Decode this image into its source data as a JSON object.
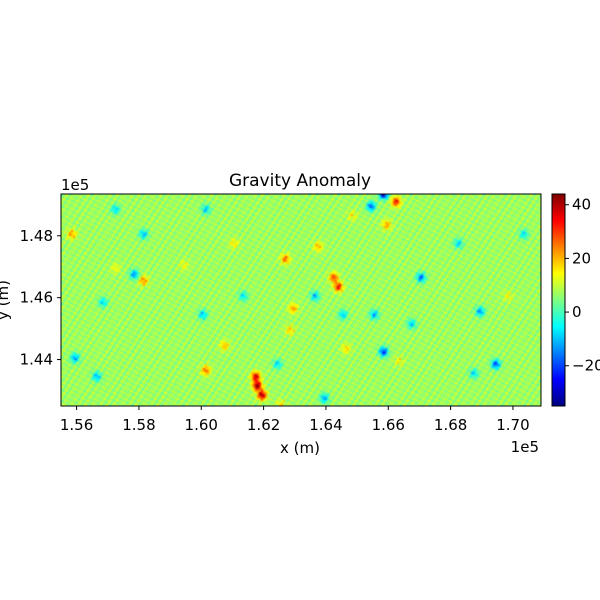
{
  "chart_data": {
    "type": "heatmap",
    "title": "Gravity Anomaly",
    "xlabel": "x (m)",
    "ylabel": "y (m)",
    "x_offset_label": "1e5",
    "y_offset_label": "1e5",
    "xlim": [
      1.555,
      1.709
    ],
    "ylim": [
      1.425,
      1.4935
    ],
    "x_ticks": [
      {
        "value": 1.56,
        "label": "1.56"
      },
      {
        "value": 1.58,
        "label": "1.58"
      },
      {
        "value": 1.6,
        "label": "1.60"
      },
      {
        "value": 1.62,
        "label": "1.62"
      },
      {
        "value": 1.64,
        "label": "1.64"
      },
      {
        "value": 1.66,
        "label": "1.66"
      },
      {
        "value": 1.68,
        "label": "1.68"
      },
      {
        "value": 1.7,
        "label": "1.70"
      }
    ],
    "y_ticks": [
      {
        "value": 1.44,
        "label": "1.44"
      },
      {
        "value": 1.46,
        "label": "1.46"
      },
      {
        "value": 1.48,
        "label": "1.48"
      }
    ],
    "colormap": "jet",
    "clim": [
      -35,
      44
    ],
    "colorbar_ticks": [
      {
        "value": -20,
        "label": "−20"
      },
      {
        "value": 0,
        "label": "0"
      },
      {
        "value": 20,
        "label": "20"
      },
      {
        "value": 40,
        "label": "40"
      }
    ],
    "field_baseline": 7,
    "anomalies": [
      {
        "x": 1.618,
        "y": 1.4315,
        "value": 44
      },
      {
        "x": 1.6195,
        "y": 1.4285,
        "value": 42
      },
      {
        "x": 1.6175,
        "y": 1.4345,
        "value": 38
      },
      {
        "x": 1.644,
        "y": 1.4635,
        "value": 34
      },
      {
        "x": 1.6425,
        "y": 1.4665,
        "value": 30
      },
      {
        "x": 1.6625,
        "y": 1.491,
        "value": 34
      },
      {
        "x": 1.627,
        "y": 1.4725,
        "value": 26
      },
      {
        "x": 1.6295,
        "y": 1.4565,
        "value": 22
      },
      {
        "x": 1.6285,
        "y": 1.4495,
        "value": 18
      },
      {
        "x": 1.6015,
        "y": 1.4365,
        "value": 26
      },
      {
        "x": 1.5815,
        "y": 1.4655,
        "value": 24
      },
      {
        "x": 1.6375,
        "y": 1.4765,
        "value": 20
      },
      {
        "x": 1.6595,
        "y": 1.4835,
        "value": 22
      },
      {
        "x": 1.5585,
        "y": 1.4805,
        "value": 22
      },
      {
        "x": 1.6075,
        "y": 1.4445,
        "value": 20
      },
      {
        "x": 1.6465,
        "y": 1.4435,
        "value": 17
      },
      {
        "x": 1.6105,
        "y": 1.4775,
        "value": 16
      },
      {
        "x": 1.6485,
        "y": 1.4865,
        "value": 15
      },
      {
        "x": 1.6635,
        "y": 1.4395,
        "value": 14
      },
      {
        "x": 1.5945,
        "y": 1.4705,
        "value": 14
      },
      {
        "x": 1.5725,
        "y": 1.4695,
        "value": 14
      },
      {
        "x": 1.6985,
        "y": 1.4605,
        "value": 14
      },
      {
        "x": 1.6255,
        "y": 1.4255,
        "value": 16
      },
      {
        "x": 1.6585,
        "y": 1.4935,
        "value": -33
      },
      {
        "x": 1.6545,
        "y": 1.4895,
        "value": -18
      },
      {
        "x": 1.6585,
        "y": 1.4425,
        "value": -22
      },
      {
        "x": 1.6945,
        "y": 1.4385,
        "value": -20
      },
      {
        "x": 1.6705,
        "y": 1.4665,
        "value": -17
      },
      {
        "x": 1.5785,
        "y": 1.4675,
        "value": -14
      },
      {
        "x": 1.6895,
        "y": 1.4555,
        "value": -14
      },
      {
        "x": 1.5595,
        "y": 1.4405,
        "value": -13
      },
      {
        "x": 1.5665,
        "y": 1.4345,
        "value": -11
      },
      {
        "x": 1.6365,
        "y": 1.4605,
        "value": -11
      },
      {
        "x": 1.6555,
        "y": 1.4545,
        "value": -12
      },
      {
        "x": 1.6395,
        "y": 1.4275,
        "value": -12
      },
      {
        "x": 1.5815,
        "y": 1.4805,
        "value": -10
      },
      {
        "x": 1.6005,
        "y": 1.4545,
        "value": -10
      },
      {
        "x": 1.6245,
        "y": 1.4385,
        "value": -8
      },
      {
        "x": 1.6015,
        "y": 1.4885,
        "value": -9
      },
      {
        "x": 1.6825,
        "y": 1.4775,
        "value": -8
      },
      {
        "x": 1.5685,
        "y": 1.4585,
        "value": -8
      },
      {
        "x": 1.6455,
        "y": 1.4545,
        "value": -9
      },
      {
        "x": 1.6675,
        "y": 1.4515,
        "value": -9
      },
      {
        "x": 1.6135,
        "y": 1.4605,
        "value": -7
      },
      {
        "x": 1.5725,
        "y": 1.4885,
        "value": -8
      },
      {
        "x": 1.7035,
        "y": 1.4805,
        "value": -7
      },
      {
        "x": 1.6875,
        "y": 1.4355,
        "value": -8
      }
    ]
  }
}
